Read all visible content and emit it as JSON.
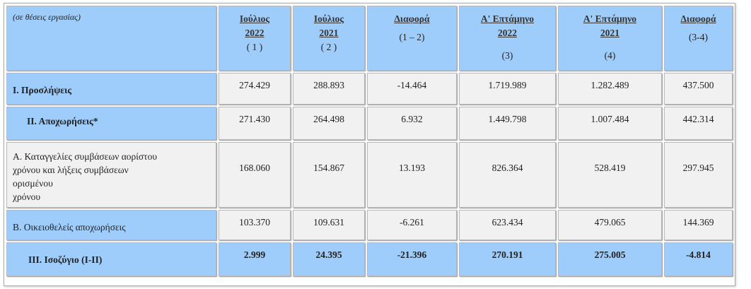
{
  "table": {
    "unit_note": "(σε θέσεις εργασίας)",
    "columns": [
      {
        "title": "Ιούλιος",
        "year": "2022",
        "note": "( 1 )"
      },
      {
        "title": "Ιούλιος",
        "year": "2021",
        "note": "( 2 )"
      },
      {
        "title": "Διαφορά",
        "note": "(1 – 2)"
      },
      {
        "title": "Α' Επτάμηνο",
        "year": "2022",
        "note": "(3)"
      },
      {
        "title": "Α' Επτάμηνο",
        "year": "2021",
        "note": "(4)"
      },
      {
        "title": "Διαφορά",
        "note": "(3-4)"
      }
    ],
    "rows": [
      {
        "label": [
          "Ι. Προσλήψεις"
        ],
        "values": [
          "274.429",
          "288.893",
          "-14.464",
          "1.719.989",
          "1.282.489",
          "437.500"
        ]
      },
      {
        "label": [
          "ΙΙ. Αποχωρήσεις*"
        ],
        "values": [
          "271.430",
          "264.498",
          "6.932",
          "1.449.798",
          "1.007.484",
          "442.314"
        ]
      },
      {
        "label": [
          "Α. Καταγγελίες συμβάσεων αορίστου",
          "χρόνου  και λήξεις συμβάσεων",
          "ορισμένου",
          "χρόνου"
        ],
        "values": [
          "168.060",
          "154.867",
          "13.193",
          "826.364",
          "528.419",
          "297.945"
        ]
      },
      {
        "label": [
          "Β. Οικειοθελείς  αποχωρήσεις"
        ],
        "values": [
          "103.370",
          "109.631",
          "-6.261",
          "623.434",
          "479.065",
          "144.369"
        ]
      },
      {
        "label": [
          "ΙΙΙ. Ισοζύγιο (Ι-ΙΙ)"
        ],
        "values": [
          "2.999",
          "24.395",
          "-21.396",
          "270.191",
          "275.005",
          "-4.814"
        ]
      }
    ]
  }
}
